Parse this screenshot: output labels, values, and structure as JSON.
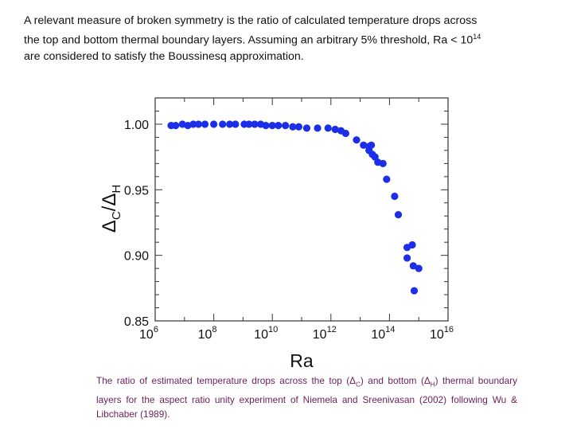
{
  "intro": {
    "line1": "A relevant measure of broken symmetry is the ratio of calculated temperature drops across",
    "line2": "the top and bottom thermal boundary layers.  Assuming an arbitrary  5% threshold, Ra < 10",
    "line2_sup": "14",
    "line3": "are considered to satisfy the Boussinesq approximation."
  },
  "caption": {
    "part1": "The ratio of estimated temperature drops across the top (Δ",
    "sub1": "C",
    "part2": ") and bottom (Δ",
    "sub2": "H",
    "part3": ") thermal boundary layers for the aspect ratio unity experiment of Niemela and Sreenivasan (2002) following Wu & Libchaber (1989)."
  },
  "chart_data": {
    "type": "scatter",
    "xlabel": "Ra",
    "ylabel_main": "Δ",
    "ylabel_sub1": "C",
    "ylabel_sep": "/Δ",
    "ylabel_sub2": "H",
    "x_scale": "log",
    "xlim": [
      1000000.0,
      1e+16
    ],
    "ylim": [
      0.85,
      1.02
    ],
    "x_ticks": [
      {
        "base": "10",
        "exp": "6",
        "value": 1000000.0
      },
      {
        "base": "10",
        "exp": "8",
        "value": 100000000.0
      },
      {
        "base": "10",
        "exp": "10",
        "value": 10000000000.0
      },
      {
        "base": "10",
        "exp": "12",
        "value": 1000000000000.0
      },
      {
        "base": "10",
        "exp": "14",
        "value": 100000000000000.0
      },
      {
        "base": "10",
        "exp": "16",
        "value": 1e+16
      }
    ],
    "y_ticks": [
      {
        "label": "1.00",
        "value": 1.0
      },
      {
        "label": "0.95",
        "value": 0.95
      },
      {
        "label": "0.90",
        "value": 0.9
      },
      {
        "label": "0.85",
        "value": 0.85
      }
    ],
    "marker_color": "#1c2fe6",
    "points": [
      {
        "x": 3500000.0,
        "y": 0.999
      },
      {
        "x": 5000000.0,
        "y": 0.999
      },
      {
        "x": 8500000.0,
        "y": 1.0
      },
      {
        "x": 13000000.0,
        "y": 0.999
      },
      {
        "x": 20000000.0,
        "y": 1.0
      },
      {
        "x": 30000000.0,
        "y": 1.0
      },
      {
        "x": 50000000.0,
        "y": 1.0
      },
      {
        "x": 100000000.0,
        "y": 1.0
      },
      {
        "x": 200000000.0,
        "y": 1.0
      },
      {
        "x": 350000000.0,
        "y": 1.0
      },
      {
        "x": 550000000.0,
        "y": 1.0
      },
      {
        "x": 1100000000.0,
        "y": 1.0
      },
      {
        "x": 1600000000.0,
        "y": 1.0
      },
      {
        "x": 2500000000.0,
        "y": 1.0
      },
      {
        "x": 4000000000.0,
        "y": 1.0
      },
      {
        "x": 6000000000.0,
        "y": 0.999
      },
      {
        "x": 10000000000.0,
        "y": 0.999
      },
      {
        "x": 16000000000.0,
        "y": 0.999
      },
      {
        "x": 28000000000.0,
        "y": 0.999
      },
      {
        "x": 50000000000.0,
        "y": 0.998
      },
      {
        "x": 80000000000.0,
        "y": 0.998
      },
      {
        "x": 150000000000.0,
        "y": 0.997
      },
      {
        "x": 350000000000.0,
        "y": 0.997
      },
      {
        "x": 800000000000.0,
        "y": 0.997
      },
      {
        "x": 1400000000000.0,
        "y": 0.996
      },
      {
        "x": 2200000000000.0,
        "y": 0.995
      },
      {
        "x": 3200000000000.0,
        "y": 0.993
      },
      {
        "x": 7500000000000.0,
        "y": 0.988
      },
      {
        "x": 13000000000000.0,
        "y": 0.984
      },
      {
        "x": 20000000000000.0,
        "y": 0.983
      },
      {
        "x": 24000000000000.0,
        "y": 0.984
      },
      {
        "x": 20000000000000.0,
        "y": 0.98
      },
      {
        "x": 26000000000000.0,
        "y": 0.977
      },
      {
        "x": 32000000000000.0,
        "y": 0.975
      },
      {
        "x": 40000000000000.0,
        "y": 0.971
      },
      {
        "x": 60000000000000.0,
        "y": 0.97
      },
      {
        "x": 80000000000000.0,
        "y": 0.958
      },
      {
        "x": 150000000000000.0,
        "y": 0.945
      },
      {
        "x": 200000000000000.0,
        "y": 0.931
      },
      {
        "x": 400000000000000.0,
        "y": 0.906
      },
      {
        "x": 600000000000000.0,
        "y": 0.908
      },
      {
        "x": 400000000000000.0,
        "y": 0.898
      },
      {
        "x": 650000000000000.0,
        "y": 0.892
      },
      {
        "x": 1000000000000000.0,
        "y": 0.89
      },
      {
        "x": 700000000000000.0,
        "y": 0.873
      }
    ]
  }
}
